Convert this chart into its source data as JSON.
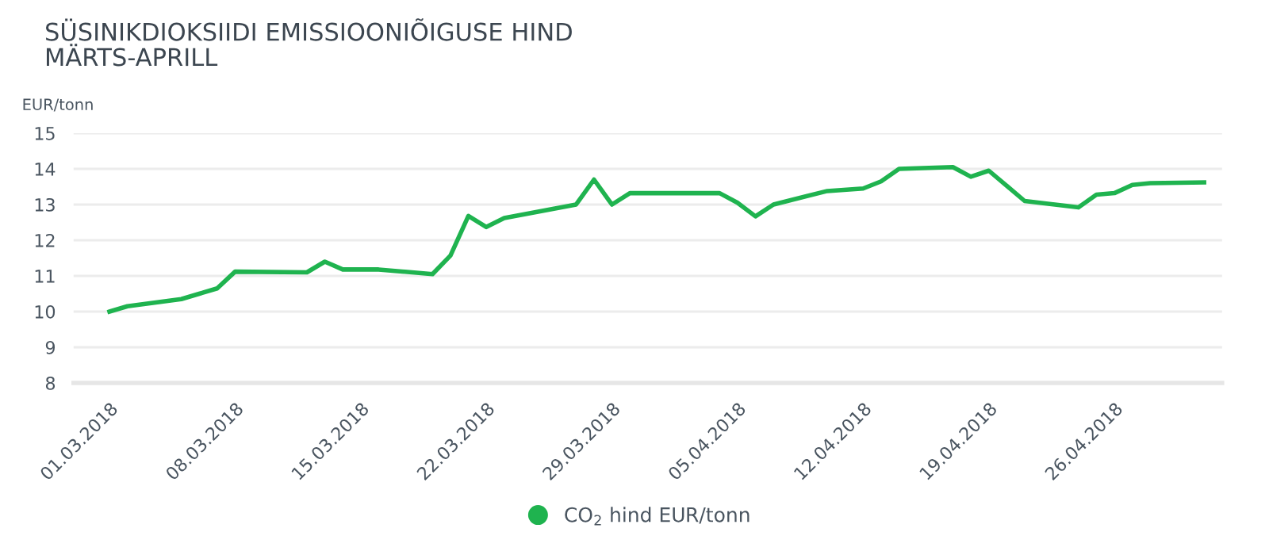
{
  "chart_data": {
    "type": "line",
    "title": "SÜSINIKDIOKSIIDI EMISSIOONIÕIGUSE HIND\nMÄRTS-APRILL",
    "ylabel": "EUR/tonn",
    "x": [
      "2018-03-01",
      "2018-03-02",
      "2018-03-05",
      "2018-03-06",
      "2018-03-07",
      "2018-03-08",
      "2018-03-12",
      "2018-03-13",
      "2018-03-14",
      "2018-03-16",
      "2018-03-19",
      "2018-03-20",
      "2018-03-21",
      "2018-03-22",
      "2018-03-23",
      "2018-03-27",
      "2018-03-28",
      "2018-03-29",
      "2018-03-30",
      "2018-04-04",
      "2018-04-05",
      "2018-04-06",
      "2018-04-07",
      "2018-04-10",
      "2018-04-12",
      "2018-04-13",
      "2018-04-14",
      "2018-04-17",
      "2018-04-18",
      "2018-04-19",
      "2018-04-21",
      "2018-04-24",
      "2018-04-25",
      "2018-04-26",
      "2018-04-27",
      "2018-04-28",
      "2018-05-01"
    ],
    "series": [
      {
        "name": "CO$_{2}$ hind EUR/tonn",
        "color": "#1fb34f",
        "values": [
          10.0,
          10.15,
          10.35,
          10.5,
          10.65,
          11.12,
          11.1,
          11.4,
          11.18,
          11.18,
          11.05,
          11.57,
          12.68,
          12.37,
          12.62,
          13.0,
          13.7,
          13.0,
          13.32,
          13.32,
          13.05,
          12.67,
          13.0,
          13.38,
          13.45,
          13.65,
          14.0,
          14.05,
          13.78,
          13.95,
          13.1,
          12.92,
          13.28,
          13.32,
          13.55,
          13.6,
          13.62
        ]
      }
    ],
    "xlim": [
      "2018-02-27",
      "2018-05-02"
    ],
    "xticks": [
      {
        "value": "2018-03-01",
        "label": "01.03.2018"
      },
      {
        "value": "2018-03-08",
        "label": "08.03.2018"
      },
      {
        "value": "2018-03-15",
        "label": "15.03.2018"
      },
      {
        "value": "2018-03-22",
        "label": "22.03.2018"
      },
      {
        "value": "2018-03-29",
        "label": "29.03.2018"
      },
      {
        "value": "2018-04-05",
        "label": "05.04.2018"
      },
      {
        "value": "2018-04-12",
        "label": "12.04.2018"
      },
      {
        "value": "2018-04-19",
        "label": "19.04.2018"
      },
      {
        "value": "2018-04-26",
        "label": "26.04.2018"
      }
    ],
    "ylim": [
      8,
      15
    ],
    "yticks": [
      8,
      9,
      10,
      11,
      12,
      13,
      14,
      15
    ],
    "grid": "y",
    "legend": "bottom",
    "marker": "none",
    "line_style": "solid"
  }
}
